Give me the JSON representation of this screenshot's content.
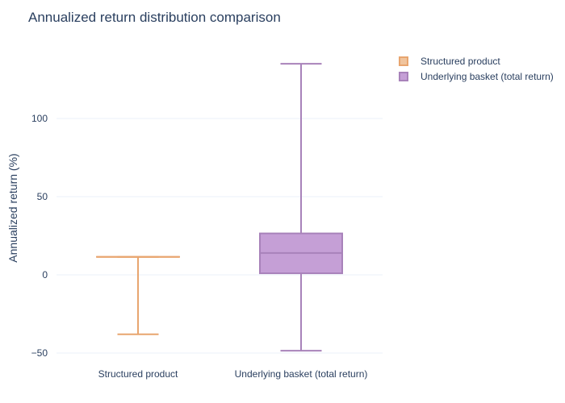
{
  "chart_data": {
    "type": "box",
    "title": "Annualized return distribution comparison",
    "ylabel": "Annualized return (%)",
    "xlabel": "",
    "ylim": [
      -52,
      140
    ],
    "yticks": [
      -50,
      0,
      50,
      100
    ],
    "ytick_labels": [
      "−50",
      "0",
      "50",
      "100"
    ],
    "grid": true,
    "legend_position": "top-right",
    "categories": [
      "Structured product",
      "Underlying basket (total return)"
    ],
    "series": [
      {
        "name": "Structured product",
        "color": "#e8a56f",
        "fill": "#f0c49d",
        "min": -38,
        "q1": 11.5,
        "median": 11.5,
        "q3": 11.5,
        "max": 11.5
      },
      {
        "name": "Underlying basket (total return)",
        "color": "#a882ba",
        "fill": "#c59fd6",
        "min": -48.5,
        "q1": 1,
        "median": 14,
        "q3": 26.5,
        "max": 135
      }
    ]
  }
}
